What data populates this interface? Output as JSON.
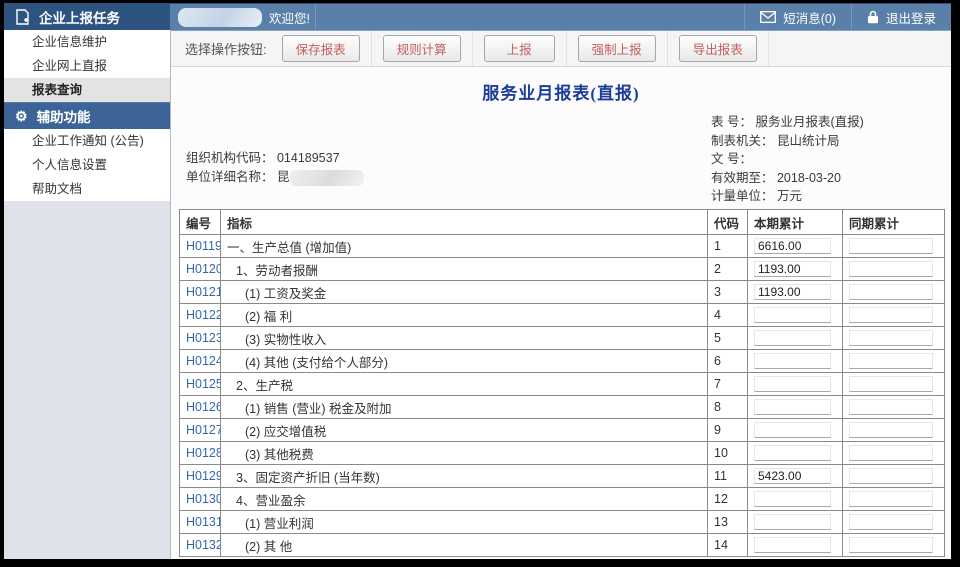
{
  "topbar": {
    "app_title": "企业上报任务",
    "welcome": "欢迎您!",
    "messages_label": "短消息(0)",
    "logout_label": "退出登录"
  },
  "sidebar": {
    "main_items": [
      {
        "label": "企业信息维护",
        "selected": false
      },
      {
        "label": "企业网上直报",
        "selected": false
      },
      {
        "label": "报表查询",
        "selected": true
      }
    ],
    "aux_section_title": "辅助功能",
    "aux_items": [
      {
        "label": "企业工作通知 (公告)",
        "selected": false
      },
      {
        "label": "个人信息设置",
        "selected": false
      },
      {
        "label": "帮助文档",
        "selected": false
      }
    ]
  },
  "toolbar": {
    "label": "选择操作按钮:",
    "buttons": [
      "保存报表",
      "规则计算",
      "上报",
      "强制上报",
      "导出报表"
    ]
  },
  "report": {
    "title": "服务业月报表(直报)",
    "meta_left": {
      "org_code_line": "组织机构代码： 014189537",
      "company_name_prefix": "单位详细名称： 昆"
    },
    "meta_right": {
      "form_no": "表 号： 服务业月报表(直报)",
      "issuing_agency": "制表机关： 昆山统计局",
      "doc_no": "文 号：",
      "valid_until": "有效期至： 2018-03-20",
      "unit": "计量单位： 万元"
    }
  },
  "table": {
    "columns": [
      "编号",
      "指标",
      "代码",
      "本期累计",
      "同期累计"
    ],
    "rows": [
      {
        "id": "H0119",
        "indicator": "一、生产总值 (增加值)",
        "indent": 0,
        "code": "1",
        "current": "6616.00",
        "previous": ""
      },
      {
        "id": "H0120",
        "indicator": "1、劳动者报酬",
        "indent": 1,
        "code": "2",
        "current": "1193.00",
        "previous": ""
      },
      {
        "id": "H0121",
        "indicator": "(1) 工资及奖金",
        "indent": 2,
        "code": "3",
        "current": "1193.00",
        "previous": ""
      },
      {
        "id": "H0122",
        "indicator": "(2) 福 利",
        "indent": 2,
        "code": "4",
        "current": "",
        "previous": ""
      },
      {
        "id": "H0123",
        "indicator": "(3) 实物性收入",
        "indent": 2,
        "code": "5",
        "current": "",
        "previous": ""
      },
      {
        "id": "H0124",
        "indicator": "(4) 其他 (支付给个人部分)",
        "indent": 2,
        "code": "6",
        "current": "",
        "previous": ""
      },
      {
        "id": "H0125",
        "indicator": "2、生产税",
        "indent": 1,
        "code": "7",
        "current": "",
        "previous": ""
      },
      {
        "id": "H0126",
        "indicator": "(1) 销售 (营业) 税金及附加",
        "indent": 2,
        "code": "8",
        "current": "",
        "previous": ""
      },
      {
        "id": "H0127",
        "indicator": "(2) 应交增值税",
        "indent": 2,
        "code": "9",
        "current": "",
        "previous": ""
      },
      {
        "id": "H0128",
        "indicator": "(3) 其他税费",
        "indent": 2,
        "code": "10",
        "current": "",
        "previous": ""
      },
      {
        "id": "H0129",
        "indicator": "3、固定资产折旧 (当年数)",
        "indent": 1,
        "code": "11",
        "current": "5423.00",
        "previous": ""
      },
      {
        "id": "H0130",
        "indicator": "4、营业盈余",
        "indent": 1,
        "code": "12",
        "current": "",
        "previous": ""
      },
      {
        "id": "H0131",
        "indicator": "(1) 营业利润",
        "indent": 2,
        "code": "13",
        "current": "",
        "previous": ""
      },
      {
        "id": "H0132",
        "indicator": "(2) 其 他",
        "indent": 2,
        "code": "14",
        "current": "",
        "previous": ""
      }
    ]
  },
  "colors": {
    "topbar_bg": "#5a80a9",
    "app_header_bg": "#2d5381",
    "aux_header_bg": "#3c6496",
    "selected_item_bg": "#e3e3e3",
    "button_text": "#c25f5e",
    "link_blue": "#3767ab",
    "title_navy": "#1c3d97",
    "table_border": "#8a8a8a"
  }
}
